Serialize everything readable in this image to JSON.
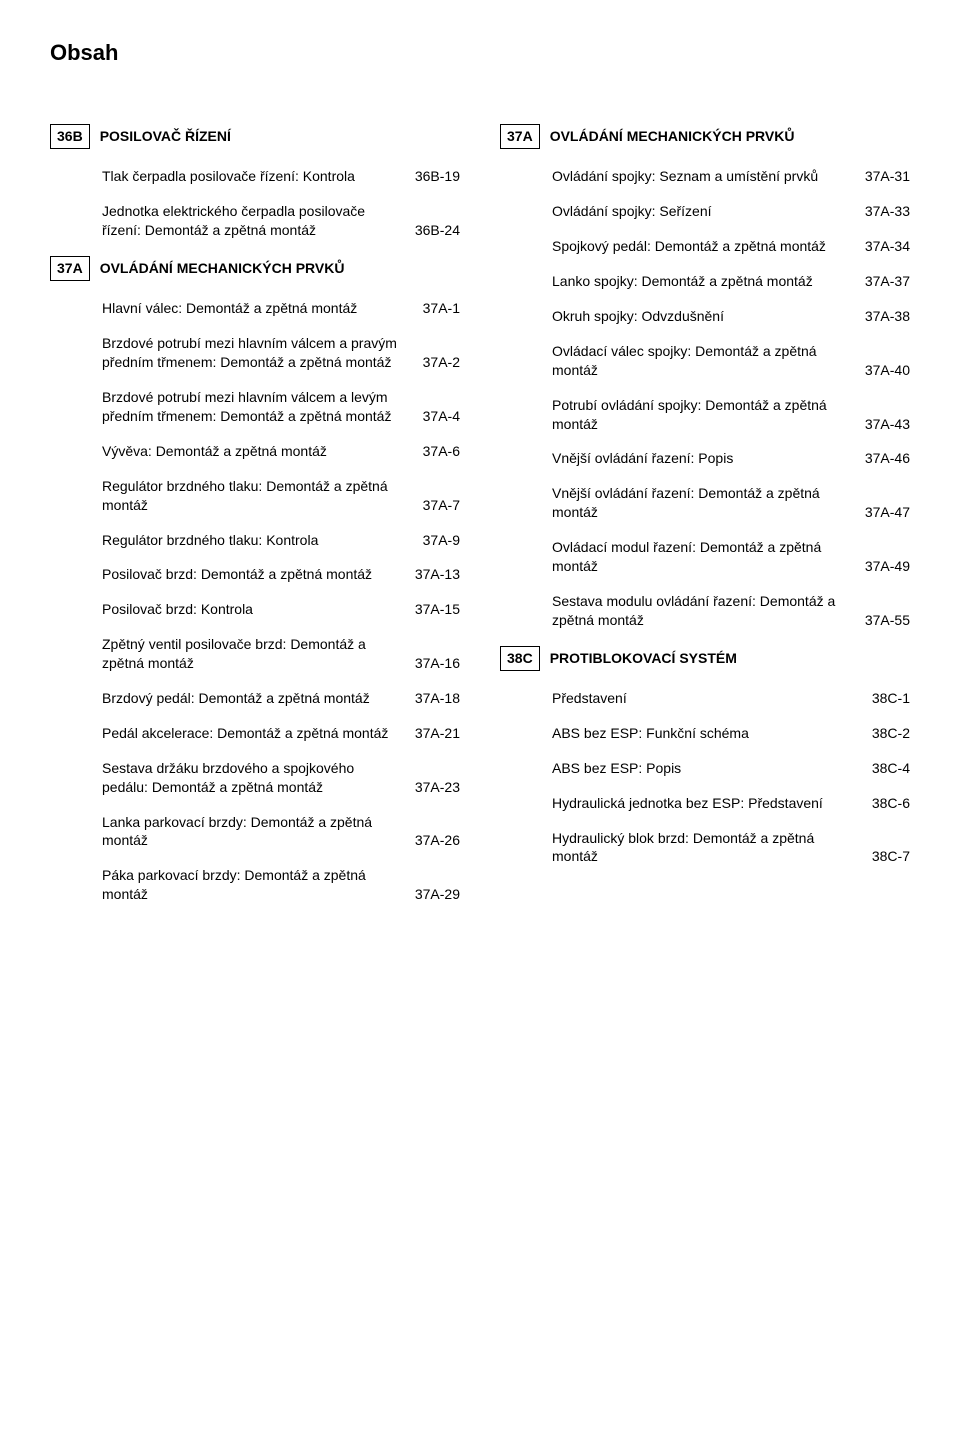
{
  "title": "Obsah",
  "left": [
    {
      "code": "36B",
      "title": "POSILOVAČ ŘÍZENÍ",
      "entries": [
        {
          "label": "Tlak čerpadla posilovače řízení: Kontrola",
          "page": "36B-19"
        },
        {
          "label": "Jednotka elektrického čerpadla posilovače řízení: Demontáž a zpětná montáž",
          "page": "36B-24"
        }
      ]
    },
    {
      "code": "37A",
      "title": "OVLÁDÁNÍ MECHANICKÝCH PRVKŮ",
      "entries": [
        {
          "label": "Hlavní válec: Demontáž a zpětná montáž",
          "page": "37A-1"
        },
        {
          "label": "Brzdové potrubí mezi hlavním válcem a pravým předním třmenem: Demontáž a zpětná montáž",
          "page": "37A-2"
        },
        {
          "label": "Brzdové potrubí mezi hlavním válcem a levým předním třmenem: Demontáž a zpětná montáž",
          "page": "37A-4"
        },
        {
          "label": "Vývěva: Demontáž a zpětná montáž",
          "page": "37A-6"
        },
        {
          "label": "Regulátor brzdného tlaku: Demontáž a zpětná montáž",
          "page": "37A-7"
        },
        {
          "label": "Regulátor brzdného tlaku: Kontrola",
          "page": "37A-9"
        },
        {
          "label": "Posilovač brzd: Demontáž a zpětná montáž",
          "page": "37A-13"
        },
        {
          "label": "Posilovač brzd: Kontrola",
          "page": "37A-15"
        },
        {
          "label": "Zpětný ventil posilovače brzd: Demontáž a zpětná montáž",
          "page": "37A-16"
        },
        {
          "label": "Brzdový pedál: Demontáž a zpětná montáž",
          "page": "37A-18"
        },
        {
          "label": "Pedál akcelerace: Demontáž a zpětná montáž",
          "page": "37A-21"
        },
        {
          "label": "Sestava držáku brzdového a spojkového pedálu: Demontáž a zpětná montáž",
          "page": "37A-23"
        },
        {
          "label": "Lanka parkovací brzdy: Demontáž a zpětná montáž",
          "page": "37A-26"
        },
        {
          "label": "Páka parkovací brzdy: Demontáž a zpětná montáž",
          "page": "37A-29"
        }
      ]
    }
  ],
  "right": [
    {
      "code": "37A",
      "title": "OVLÁDÁNÍ MECHANICKÝCH PRVKŮ",
      "entries": [
        {
          "label": "Ovládání spojky: Seznam a umístění prvků",
          "page": "37A-31"
        },
        {
          "label": "Ovládání spojky: Seřízení",
          "page": "37A-33"
        },
        {
          "label": "Spojkový pedál: Demontáž a zpětná montáž",
          "page": "37A-34"
        },
        {
          "label": "Lanko spojky: Demontáž a zpětná montáž",
          "page": "37A-37"
        },
        {
          "label": "Okruh spojky: Odvzdušnění",
          "page": "37A-38"
        },
        {
          "label": "Ovládací válec spojky: Demontáž a zpětná montáž",
          "page": "37A-40"
        },
        {
          "label": "Potrubí ovládání spojky: Demontáž a zpětná montáž",
          "page": "37A-43"
        },
        {
          "label": "Vnější ovládání řazení: Popis",
          "page": "37A-46"
        },
        {
          "label": "Vnější ovládání řazení: Demontáž a zpětná montáž",
          "page": "37A-47"
        },
        {
          "label": "Ovládací modul řazení: Demontáž a zpětná montáž",
          "page": "37A-49"
        },
        {
          "label": "Sestava modulu ovládání řazení: Demontáž a zpětná montáž",
          "page": "37A-55"
        }
      ]
    },
    {
      "code": "38C",
      "title": "PROTIBLOKOVACÍ SYSTÉM",
      "entries": [
        {
          "label": "Představení",
          "page": "38C-1"
        },
        {
          "label": "ABS bez ESP: Funkční schéma",
          "page": "38C-2"
        },
        {
          "label": "ABS bez ESP: Popis",
          "page": "38C-4"
        },
        {
          "label": "Hydraulická jednotka bez ESP: Představení",
          "page": "38C-6"
        },
        {
          "label": "Hydraulický blok brzd: Demontáž a zpětná montáž",
          "page": "38C-7"
        }
      ]
    }
  ]
}
